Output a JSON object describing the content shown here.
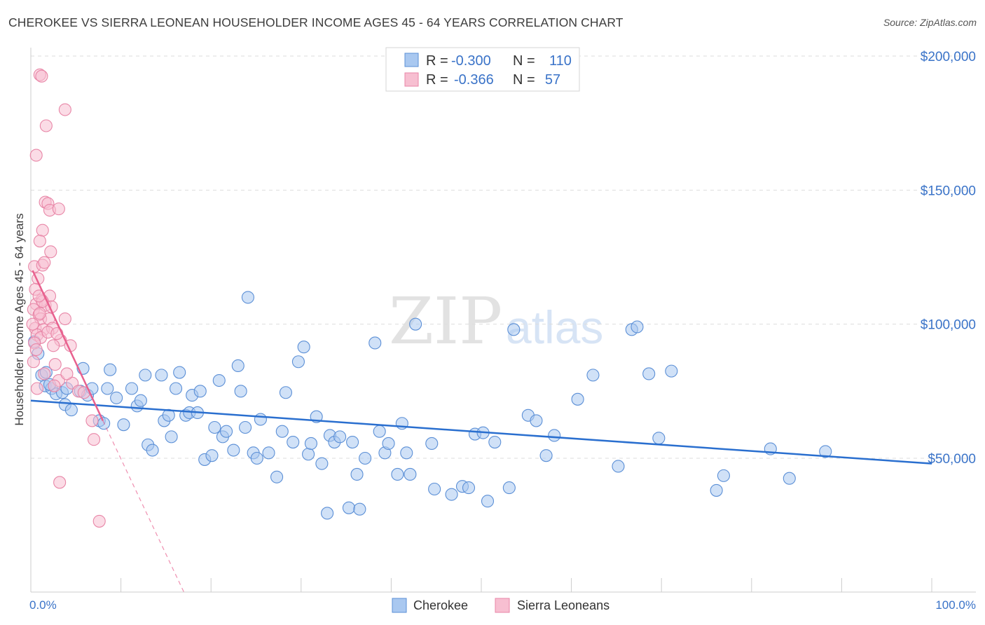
{
  "header": {
    "title": "CHEROKEE VS SIERRA LEONEAN HOUSEHOLDER INCOME AGES 45 - 64 YEARS CORRELATION CHART",
    "source": "Source: ZipAtlas.com"
  },
  "watermark": {
    "zip": "ZIP",
    "atlas": "atlas"
  },
  "legend": {
    "r_label": "R =",
    "n_label": "N =",
    "rows": [
      {
        "series": "Cherokee",
        "r": "-0.300",
        "n": "110"
      },
      {
        "series": "Sierra Leoneans",
        "r": "-0.366",
        "n": "57"
      }
    ]
  },
  "chart_data": {
    "type": "scatter",
    "title": "CHEROKEE VS SIERRA LEONEAN HOUSEHOLDER INCOME AGES 45 - 64 YEARS CORRELATION CHART",
    "xlabel": "",
    "ylabel": "Householder Income Ages 45 - 64 years",
    "xlim": [
      0,
      100
    ],
    "ylim": [
      0,
      205000
    ],
    "x_tick_labels": [
      "0.0%",
      "100.0%"
    ],
    "y_ticks": [
      50000,
      100000,
      150000,
      200000
    ],
    "y_tick_labels": [
      "$50,000",
      "$100,000",
      "$150,000",
      "$200,000"
    ],
    "grid": true,
    "colors": {
      "cherokee_fill": "#a9c8f0",
      "cherokee_stroke": "#5b8fd6",
      "cherokee_line": "#2a6fcf",
      "sierra_fill": "#f7bfd1",
      "sierra_stroke": "#e886a7",
      "sierra_line": "#e8608e",
      "axis_label": "#3a73c8",
      "grid": "#dddddd"
    },
    "series": [
      {
        "name": "Cherokee",
        "trend": {
          "x": [
            0,
            100
          ],
          "y": [
            71500,
            48000
          ]
        },
        "points": [
          [
            0.4,
            93500
          ],
          [
            0.8,
            89000
          ],
          [
            1.2,
            81000
          ],
          [
            1.6,
            77000
          ],
          [
            2.3,
            76000
          ],
          [
            2.8,
            74000
          ],
          [
            3.5,
            74500
          ],
          [
            3.8,
            70000
          ],
          [
            4.5,
            68000
          ],
          [
            5.5,
            75000
          ],
          [
            5.8,
            83500
          ],
          [
            6.3,
            73500
          ],
          [
            6.8,
            76000
          ],
          [
            7.6,
            64000
          ],
          [
            8.1,
            63000
          ],
          [
            8.5,
            76000
          ],
          [
            8.8,
            83000
          ],
          [
            9.5,
            72500
          ],
          [
            10.3,
            62500
          ],
          [
            11.2,
            76000
          ],
          [
            11.8,
            69500
          ],
          [
            12.2,
            71500
          ],
          [
            12.7,
            81000
          ],
          [
            13,
            55000
          ],
          [
            13.5,
            53000
          ],
          [
            14.5,
            81000
          ],
          [
            14.8,
            64000
          ],
          [
            15.3,
            66000
          ],
          [
            15.6,
            58000
          ],
          [
            16.1,
            76000
          ],
          [
            16.5,
            82000
          ],
          [
            17.2,
            66000
          ],
          [
            17.6,
            67000
          ],
          [
            17.9,
            73500
          ],
          [
            18.5,
            67000
          ],
          [
            18.8,
            75000
          ],
          [
            19.3,
            49500
          ],
          [
            20.1,
            51000
          ],
          [
            20.4,
            61500
          ],
          [
            20.9,
            79000
          ],
          [
            21.3,
            58000
          ],
          [
            21.7,
            60000
          ],
          [
            22.5,
            53000
          ],
          [
            23,
            84500
          ],
          [
            23.3,
            75000
          ],
          [
            23.8,
            61500
          ],
          [
            24.1,
            110000
          ],
          [
            24.7,
            52000
          ],
          [
            25.1,
            50000
          ],
          [
            25.5,
            64500
          ],
          [
            26.4,
            52000
          ],
          [
            27.3,
            43000
          ],
          [
            27.9,
            60000
          ],
          [
            28.3,
            74500
          ],
          [
            29.1,
            56000
          ],
          [
            29.7,
            86000
          ],
          [
            30.3,
            91500
          ],
          [
            30.8,
            51500
          ],
          [
            31.1,
            55500
          ],
          [
            31.7,
            65500
          ],
          [
            32.3,
            48000
          ],
          [
            33.2,
            58500
          ],
          [
            33.7,
            56000
          ],
          [
            34.3,
            58000
          ],
          [
            35.3,
            31500
          ],
          [
            35.7,
            56000
          ],
          [
            36.2,
            44000
          ],
          [
            37.1,
            50000
          ],
          [
            38.2,
            93000
          ],
          [
            38.7,
            60000
          ],
          [
            39.3,
            52000
          ],
          [
            39.7,
            55500
          ],
          [
            40.7,
            44000
          ],
          [
            41.2,
            63000
          ],
          [
            41.7,
            52000
          ],
          [
            42.1,
            44000
          ],
          [
            42.7,
            100000
          ],
          [
            44.5,
            55500
          ],
          [
            46.7,
            36500
          ],
          [
            47.9,
            39500
          ],
          [
            48.6,
            39000
          ],
          [
            49.3,
            59000
          ],
          [
            50.2,
            59500
          ],
          [
            50.7,
            34000
          ],
          [
            51.5,
            56000
          ],
          [
            53.1,
            39000
          ],
          [
            53.6,
            98000
          ],
          [
            55.2,
            66000
          ],
          [
            56.1,
            64000
          ],
          [
            57.2,
            51000
          ],
          [
            58.1,
            58500
          ],
          [
            60.7,
            72000
          ],
          [
            62.4,
            81000
          ],
          [
            65.2,
            47000
          ],
          [
            66.7,
            98000
          ],
          [
            67.3,
            99000
          ],
          [
            68.6,
            81500
          ],
          [
            69.7,
            57500
          ],
          [
            71.1,
            82500
          ],
          [
            76.1,
            38000
          ],
          [
            76.9,
            43500
          ],
          [
            82.1,
            53500
          ],
          [
            84.2,
            42500
          ],
          [
            88.2,
            52500
          ],
          [
            32.9,
            29500
          ],
          [
            36.5,
            31000
          ],
          [
            2.1,
            77500
          ],
          [
            4.0,
            76000
          ],
          [
            1.7,
            82000
          ],
          [
            44.8,
            38500
          ]
        ]
      },
      {
        "name": "Sierra Leoneans",
        "trend_solid": {
          "x": [
            0.2,
            8.0
          ],
          "y": [
            120000,
            64000
          ]
        },
        "trend_dashed": {
          "x": [
            8.0,
            17.0
          ],
          "y": [
            64000,
            0
          ]
        },
        "points": [
          [
            1.0,
            193000
          ],
          [
            1.2,
            192500
          ],
          [
            3.8,
            180000
          ],
          [
            1.7,
            174000
          ],
          [
            0.6,
            163000
          ],
          [
            1.6,
            145500
          ],
          [
            1.9,
            145000
          ],
          [
            2.1,
            142500
          ],
          [
            3.1,
            143000
          ],
          [
            1.3,
            135000
          ],
          [
            1.0,
            131000
          ],
          [
            2.2,
            127000
          ],
          [
            0.4,
            121500
          ],
          [
            1.3,
            122000
          ],
          [
            1.5,
            123000
          ],
          [
            0.8,
            117000
          ],
          [
            0.5,
            113000
          ],
          [
            2.1,
            110500
          ],
          [
            1.2,
            109000
          ],
          [
            0.6,
            107500
          ],
          [
            1.6,
            107000
          ],
          [
            2.3,
            106500
          ],
          [
            0.3,
            105500
          ],
          [
            0.9,
            103500
          ],
          [
            1.1,
            102000
          ],
          [
            2.0,
            102000
          ],
          [
            3.8,
            102000
          ],
          [
            0.5,
            98500
          ],
          [
            1.4,
            98000
          ],
          [
            2.4,
            98500
          ],
          [
            0.7,
            96000
          ],
          [
            1.1,
            95000
          ],
          [
            3.3,
            94000
          ],
          [
            0.4,
            93000
          ],
          [
            0.6,
            90500
          ],
          [
            2.5,
            92000
          ],
          [
            4.4,
            92000
          ],
          [
            0.3,
            86000
          ],
          [
            2.7,
            85000
          ],
          [
            1.5,
            81500
          ],
          [
            3.1,
            79000
          ],
          [
            0.7,
            76000
          ],
          [
            2.6,
            77000
          ],
          [
            4.6,
            78000
          ],
          [
            5.3,
            75000
          ],
          [
            6.8,
            64000
          ],
          [
            7.0,
            57000
          ],
          [
            3.2,
            41000
          ],
          [
            7.6,
            26500
          ],
          [
            1.9,
            97000
          ],
          [
            0.2,
            100000
          ],
          [
            1.0,
            104000
          ],
          [
            2.9,
            96500
          ],
          [
            4.0,
            81500
          ],
          [
            5.9,
            74500
          ],
          [
            1.3,
            108500
          ],
          [
            0.9,
            110500
          ]
        ]
      }
    ]
  }
}
